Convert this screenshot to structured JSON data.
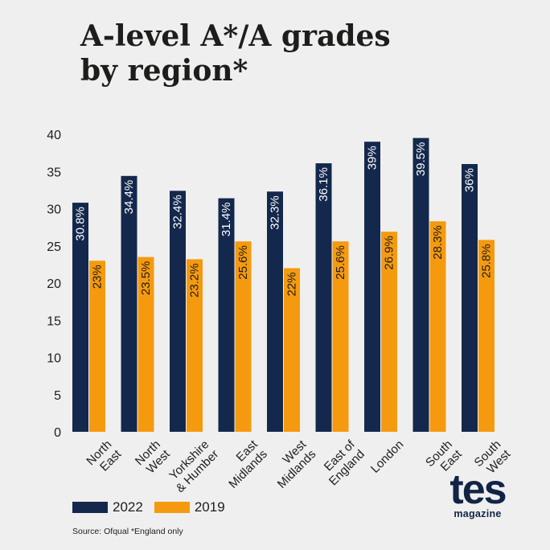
{
  "header": {
    "title_line1": "A-level A*/A grades",
    "title_line2": "by region*"
  },
  "footer": {
    "source": "Source: Ofqual *England only"
  },
  "brand": {
    "logo_main": "tes",
    "logo_sub": "magazine"
  },
  "colors": {
    "series_2022": "#13284c",
    "series_2019": "#f59a0f",
    "axis_text": "#1d1d1b",
    "label_on_dark": "#ffffff",
    "label_on_light": "#1d1d1b"
  },
  "chart_data": {
    "type": "bar",
    "title": "A-level A*/A grades by region*",
    "categories": [
      [
        "North",
        "East"
      ],
      [
        "North",
        "West"
      ],
      [
        "Yorkshire",
        "& Humber"
      ],
      [
        "East",
        "Midlands"
      ],
      [
        "West",
        "Midlands"
      ],
      [
        "East of",
        "England"
      ],
      [
        "London"
      ],
      [
        "South",
        "East"
      ],
      [
        "South",
        "West"
      ]
    ],
    "series": [
      {
        "name": "2022",
        "values": [
          30.8,
          34.4,
          32.4,
          31.4,
          32.3,
          36.1,
          39,
          39.5,
          36
        ],
        "labels": [
          "30.8%",
          "34.4%",
          "32.4%",
          "31.4%",
          "32.3%",
          "36.1%",
          "39%",
          "39.5%",
          "36%"
        ]
      },
      {
        "name": "2019",
        "values": [
          23,
          23.5,
          23.2,
          25.6,
          22,
          25.6,
          26.9,
          28.3,
          25.8
        ],
        "labels": [
          "23%",
          "23.5%",
          "23.2%",
          "25.6%",
          "22%",
          "25.6%",
          "26.9%",
          "28.3%",
          "25.8%"
        ]
      }
    ],
    "y_ticks": [
      "0",
      "5",
      "10",
      "15",
      "20",
      "25",
      "30",
      "35",
      "40"
    ],
    "ylim": [
      0,
      40
    ],
    "grid": false,
    "legend_position": "bottom-left"
  }
}
